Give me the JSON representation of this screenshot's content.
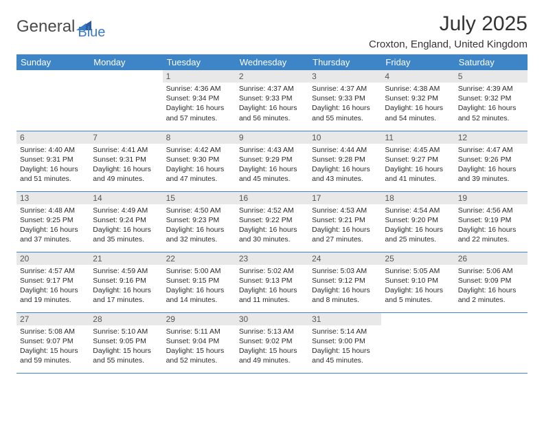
{
  "logo": {
    "text1": "General",
    "text2": "Blue",
    "color1": "#4a4a4a",
    "color2": "#3a7bc8",
    "triangle_color": "#2e5c9e"
  },
  "title": "July 2025",
  "location": "Croxton, England, United Kingdom",
  "theme": {
    "header_bg": "#3d85c6",
    "header_fg": "#ffffff",
    "daynum_bg": "#e8e8e8",
    "rule": "#3d85c6"
  },
  "day_names": [
    "Sunday",
    "Monday",
    "Tuesday",
    "Wednesday",
    "Thursday",
    "Friday",
    "Saturday"
  ],
  "first_weekday": 2,
  "days_in_month": 31,
  "labels": {
    "sunrise": "Sunrise: ",
    "sunset": "Sunset: ",
    "daylight": "Daylight: "
  },
  "days": [
    {
      "n": 1,
      "sunrise": "4:36 AM",
      "sunset": "9:34 PM",
      "daylight": "16 hours and 57 minutes."
    },
    {
      "n": 2,
      "sunrise": "4:37 AM",
      "sunset": "9:33 PM",
      "daylight": "16 hours and 56 minutes."
    },
    {
      "n": 3,
      "sunrise": "4:37 AM",
      "sunset": "9:33 PM",
      "daylight": "16 hours and 55 minutes."
    },
    {
      "n": 4,
      "sunrise": "4:38 AM",
      "sunset": "9:32 PM",
      "daylight": "16 hours and 54 minutes."
    },
    {
      "n": 5,
      "sunrise": "4:39 AM",
      "sunset": "9:32 PM",
      "daylight": "16 hours and 52 minutes."
    },
    {
      "n": 6,
      "sunrise": "4:40 AM",
      "sunset": "9:31 PM",
      "daylight": "16 hours and 51 minutes."
    },
    {
      "n": 7,
      "sunrise": "4:41 AM",
      "sunset": "9:31 PM",
      "daylight": "16 hours and 49 minutes."
    },
    {
      "n": 8,
      "sunrise": "4:42 AM",
      "sunset": "9:30 PM",
      "daylight": "16 hours and 47 minutes."
    },
    {
      "n": 9,
      "sunrise": "4:43 AM",
      "sunset": "9:29 PM",
      "daylight": "16 hours and 45 minutes."
    },
    {
      "n": 10,
      "sunrise": "4:44 AM",
      "sunset": "9:28 PM",
      "daylight": "16 hours and 43 minutes."
    },
    {
      "n": 11,
      "sunrise": "4:45 AM",
      "sunset": "9:27 PM",
      "daylight": "16 hours and 41 minutes."
    },
    {
      "n": 12,
      "sunrise": "4:47 AM",
      "sunset": "9:26 PM",
      "daylight": "16 hours and 39 minutes."
    },
    {
      "n": 13,
      "sunrise": "4:48 AM",
      "sunset": "9:25 PM",
      "daylight": "16 hours and 37 minutes."
    },
    {
      "n": 14,
      "sunrise": "4:49 AM",
      "sunset": "9:24 PM",
      "daylight": "16 hours and 35 minutes."
    },
    {
      "n": 15,
      "sunrise": "4:50 AM",
      "sunset": "9:23 PM",
      "daylight": "16 hours and 32 minutes."
    },
    {
      "n": 16,
      "sunrise": "4:52 AM",
      "sunset": "9:22 PM",
      "daylight": "16 hours and 30 minutes."
    },
    {
      "n": 17,
      "sunrise": "4:53 AM",
      "sunset": "9:21 PM",
      "daylight": "16 hours and 27 minutes."
    },
    {
      "n": 18,
      "sunrise": "4:54 AM",
      "sunset": "9:20 PM",
      "daylight": "16 hours and 25 minutes."
    },
    {
      "n": 19,
      "sunrise": "4:56 AM",
      "sunset": "9:19 PM",
      "daylight": "16 hours and 22 minutes."
    },
    {
      "n": 20,
      "sunrise": "4:57 AM",
      "sunset": "9:17 PM",
      "daylight": "16 hours and 19 minutes."
    },
    {
      "n": 21,
      "sunrise": "4:59 AM",
      "sunset": "9:16 PM",
      "daylight": "16 hours and 17 minutes."
    },
    {
      "n": 22,
      "sunrise": "5:00 AM",
      "sunset": "9:15 PM",
      "daylight": "16 hours and 14 minutes."
    },
    {
      "n": 23,
      "sunrise": "5:02 AM",
      "sunset": "9:13 PM",
      "daylight": "16 hours and 11 minutes."
    },
    {
      "n": 24,
      "sunrise": "5:03 AM",
      "sunset": "9:12 PM",
      "daylight": "16 hours and 8 minutes."
    },
    {
      "n": 25,
      "sunrise": "5:05 AM",
      "sunset": "9:10 PM",
      "daylight": "16 hours and 5 minutes."
    },
    {
      "n": 26,
      "sunrise": "5:06 AM",
      "sunset": "9:09 PM",
      "daylight": "16 hours and 2 minutes."
    },
    {
      "n": 27,
      "sunrise": "5:08 AM",
      "sunset": "9:07 PM",
      "daylight": "15 hours and 59 minutes."
    },
    {
      "n": 28,
      "sunrise": "5:10 AM",
      "sunset": "9:05 PM",
      "daylight": "15 hours and 55 minutes."
    },
    {
      "n": 29,
      "sunrise": "5:11 AM",
      "sunset": "9:04 PM",
      "daylight": "15 hours and 52 minutes."
    },
    {
      "n": 30,
      "sunrise": "5:13 AM",
      "sunset": "9:02 PM",
      "daylight": "15 hours and 49 minutes."
    },
    {
      "n": 31,
      "sunrise": "5:14 AM",
      "sunset": "9:00 PM",
      "daylight": "15 hours and 45 minutes."
    }
  ]
}
